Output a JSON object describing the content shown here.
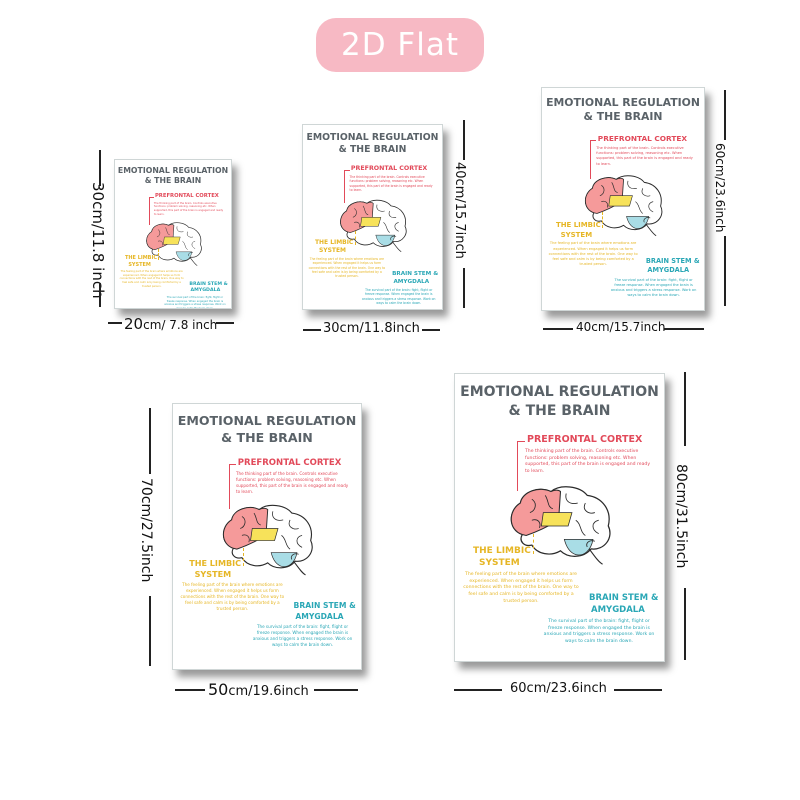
{
  "badge": "2D Flat",
  "poster": {
    "title_line1": "EMOTIONAL REGULATION",
    "title_line2": "& THE BRAIN",
    "prefrontal": "PREFRONTAL CORTEX",
    "limbic_1": "THE LIMBIC",
    "limbic_2": "SYSTEM",
    "stem_1": "BRAIN STEM &",
    "stem_2": "AMYGDALA",
    "prefrontal_text": "The thinking part of the brain. Controls executive functions: problem solving, reasoning etc. When supported, this part of the brain is engaged and ready to learn.",
    "limbic_text": "The feeling part of the brain where emotions are experienced. When engaged it helps us form connections with the rest of the brain. One way to feel safe and calm is by being comforted by a trusted person.",
    "stem_text": "The survival part of the brain: fight, flight or freeze response. When engaged the brain is anxious and triggers a stress response. Work on ways to calm the brain down."
  },
  "sizes": [
    {
      "id": "20x30",
      "width_num": "20",
      "width_unit": "cm/ 7.8 inch",
      "height_label": "30cm/11.8 inch"
    },
    {
      "id": "30x40",
      "width_label": "30cm/11.8inch",
      "height_label": "40cm/15.7inch"
    },
    {
      "id": "40x60",
      "width_label": "40cm/15.7inch",
      "height_label": "60cm/23.6inch"
    },
    {
      "id": "50x70",
      "width_num": "50",
      "width_unit": "cm/19.6inch",
      "height_label": "70cm/27.5inch"
    },
    {
      "id": "60x80",
      "width_label": "60cm/23.6inch",
      "height_label": "80cm/31.5inch"
    }
  ],
  "colors": {
    "badge": "#f7b9c4",
    "prefrontal": "#e24a5a",
    "limbic": "#e6b625",
    "stem": "#2aa7b6",
    "brain_front": "#f59a9a",
    "limbic_fill": "#f7e25a",
    "stem_fill": "#a9dde6"
  }
}
